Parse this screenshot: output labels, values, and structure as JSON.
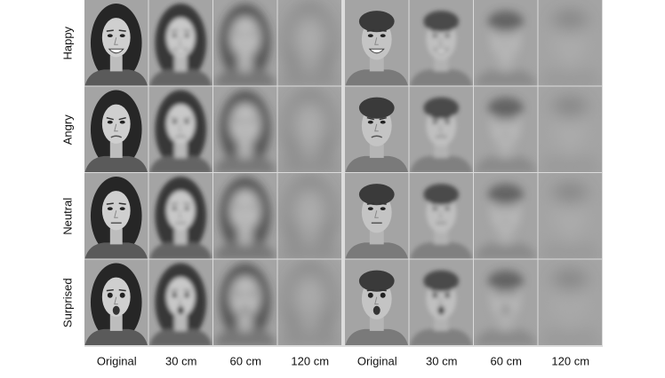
{
  "rows": [
    "Happy",
    "Angry",
    "Neutral",
    "Surprised"
  ],
  "columns": [
    "Original",
    "30 cm",
    "60 cm",
    "120 cm",
    "Original",
    "30 cm",
    "60 cm",
    "120 cm"
  ]
}
